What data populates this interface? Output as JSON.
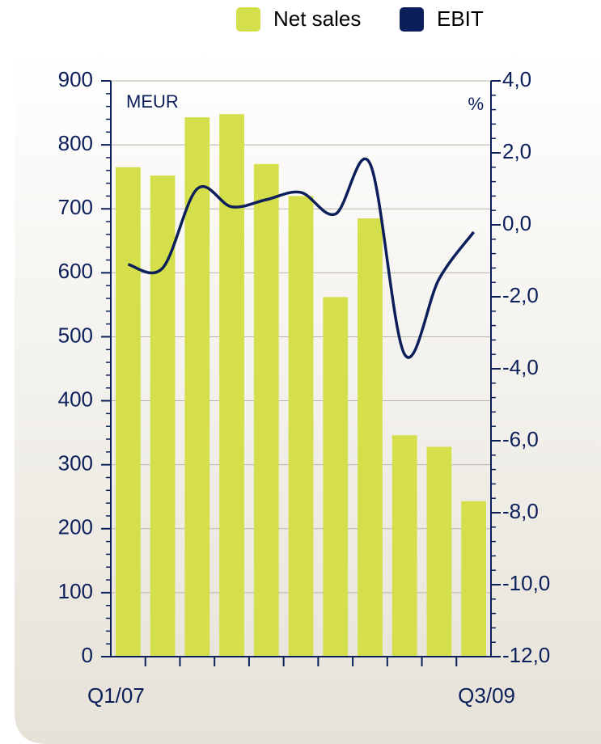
{
  "chart_data": {
    "type": "bar-line",
    "categories": [
      "Q1/07",
      null,
      null,
      null,
      null,
      null,
      null,
      null,
      null,
      null,
      "Q3/09"
    ],
    "series": [
      {
        "name": "Net sales",
        "color": "#d5df4b",
        "type": "bar",
        "values": [
          765,
          752,
          843,
          848,
          770,
          720,
          562,
          685,
          346,
          328,
          243
        ]
      },
      {
        "name": "EBIT",
        "color": "#0c1f5b",
        "type": "line",
        "axis": "y2",
        "values": [
          -1.1,
          -1.2,
          1.0,
          0.5,
          0.7,
          0.9,
          0.3,
          1.7,
          -3.6,
          -1.5,
          -0.2
        ]
      }
    ],
    "y_unit": "MEUR",
    "y2_unit": "%",
    "ylim": [
      0,
      900
    ],
    "yticks": [
      0,
      100,
      200,
      300,
      400,
      500,
      600,
      700,
      800,
      900
    ],
    "y2lim": [
      -12,
      4
    ],
    "y2ticks": [
      {
        "value": -12,
        "label": "-12,0"
      },
      {
        "value": -10,
        "label": "-10,0"
      },
      {
        "value": -8,
        "label": "-8,0"
      },
      {
        "value": -6,
        "label": "-6,0"
      },
      {
        "value": -4,
        "label": "-4,0"
      },
      {
        "value": -2,
        "label": "-2,0"
      },
      {
        "value": 0,
        "label": "0,0"
      },
      {
        "value": 2,
        "label": "2,0"
      },
      {
        "value": 4,
        "label": "4,0"
      }
    ],
    "grid": true,
    "legend": "top"
  }
}
